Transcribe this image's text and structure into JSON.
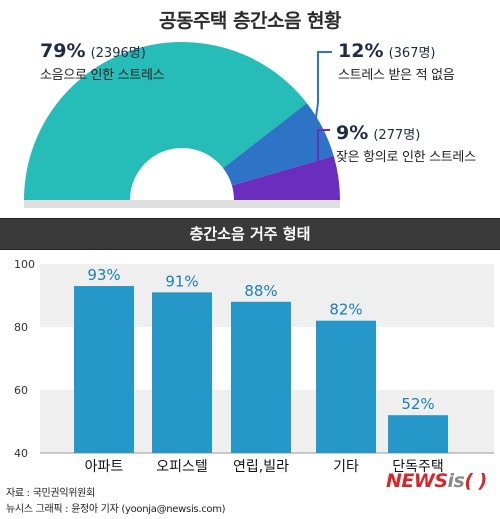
{
  "title": "공동주택 층간소음 현황",
  "pie": {
    "segments": [
      {
        "percent": "79%",
        "count": "(2396명)",
        "label": "소음으로 인한 스트레스",
        "value": 79,
        "color": "#26bcb7"
      },
      {
        "percent": "12%",
        "count": "(367명)",
        "label": "스트레스 받은 적 없음",
        "value": 12,
        "color": "#2d74c6"
      },
      {
        "percent": "9%",
        "count": "(277명)",
        "label": "잦은 항의로 인한 스트레스",
        "value": 9,
        "color": "#6b2dbd"
      }
    ],
    "leader_colors": [
      "#2d74c6",
      "#6b2dbd"
    ]
  },
  "section_title": "층간소음 거주 형태",
  "chart_data": {
    "type": "bar",
    "title": "층간소음 거주 형태",
    "categories": [
      "아파트",
      "오피스텔",
      "연립,빌라",
      "기타",
      "단독주택"
    ],
    "values": [
      93,
      91,
      88,
      82,
      52
    ],
    "value_labels": [
      "93%",
      "91%",
      "88%",
      "82%",
      "52%"
    ],
    "ylim": [
      40,
      100
    ],
    "yticks": [
      40,
      60,
      80,
      100
    ],
    "grid": "alternating bands",
    "bar_color": "#2597c8",
    "label_color": "#1b7fb5",
    "band_color": "#efefef"
  },
  "credits": {
    "source": "자료 : 국민권익위원회",
    "graphic": "뉴시스 그래픽 : 윤정아 기자 (yoonja@newsis.com)"
  },
  "logo": {
    "news": "NEWS",
    "is": "is",
    "paren": "( )"
  }
}
